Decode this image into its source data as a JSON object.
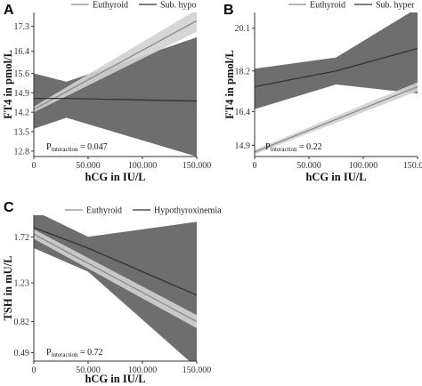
{
  "chart_data": [
    {
      "panel": "A",
      "type": "line",
      "xlabel": "hCG in IU/L",
      "ylabel": "FT4 in pmol/L",
      "x_ticks": [
        "0",
        "50.000",
        "100.000",
        "150.000"
      ],
      "y_ticks": [
        "12.8",
        "13.5",
        "14.2",
        "14.9",
        "15.6",
        "16.4",
        "17.3"
      ],
      "xlim": [
        0,
        150000
      ],
      "ylim": [
        12.6,
        17.8
      ],
      "legend": [
        "Euthyroid",
        "Sub. hypo"
      ],
      "legend_placement": "top",
      "annotation": {
        "prefix": "P",
        "sub": "interaction",
        "value": " = 0.047"
      },
      "series": [
        {
          "name": "Euthyroid",
          "color": "#8a8a8a",
          "x": [
            0,
            150000
          ],
          "y": [
            14.3,
            17.5
          ],
          "ci_lower": [
            14.2,
            17.1
          ],
          "ci_upper": [
            14.4,
            17.9
          ]
        },
        {
          "name": "Sub. hypo",
          "color": "#333333",
          "x": [
            0,
            30000,
            150000
          ],
          "y": [
            14.7,
            14.7,
            14.6
          ],
          "ci_lower": [
            13.6,
            14.0,
            12.6
          ],
          "ci_upper": [
            15.6,
            15.3,
            16.9
          ]
        }
      ],
      "band_colors": [
        "#d2d2d2",
        "#6e6e6e"
      ],
      "grid": false
    },
    {
      "panel": "B",
      "type": "line",
      "xlabel": "hCG in IU/L",
      "ylabel": "FT4 in pmol/L",
      "x_ticks": [
        "0",
        "50.000",
        "100.000",
        "150.000"
      ],
      "y_ticks": [
        "14.9",
        "16.4",
        "18.2",
        "20.1"
      ],
      "xlim": [
        0,
        150000
      ],
      "ylim": [
        14.4,
        20.8
      ],
      "legend": [
        "Euthyroid",
        "Sub. hyper"
      ],
      "legend_placement": "top",
      "annotation": {
        "prefix": "P",
        "sub": "interaction",
        "value": " = 0.22"
      },
      "series": [
        {
          "name": "Euthyroid",
          "color": "#8a8a8a",
          "x": [
            0,
            150000
          ],
          "y": [
            14.6,
            17.5
          ],
          "ci_lower": [
            14.5,
            17.3
          ],
          "ci_upper": [
            14.7,
            17.7
          ]
        },
        {
          "name": "Sub. hyper",
          "color": "#333333",
          "x": [
            0,
            75000,
            150000
          ],
          "y": [
            17.5,
            18.2,
            19.2
          ],
          "ci_lower": [
            16.5,
            17.6,
            17.2
          ],
          "ci_upper": [
            18.3,
            18.8,
            21.0
          ]
        }
      ],
      "band_colors": [
        "#d2d2d2",
        "#6e6e6e"
      ],
      "grid": false
    },
    {
      "panel": "C",
      "type": "line",
      "xlabel": "hCG in IU/L",
      "ylabel": "TSH in mU/L",
      "x_ticks": [
        "0",
        "50.000",
        "100.000",
        "150.000"
      ],
      "y_ticks": [
        "0.49",
        "0.82",
        "1.23",
        "1.72"
      ],
      "xlim": [
        0,
        150000
      ],
      "ylim": [
        0.4,
        1.95
      ],
      "legend": [
        "Euthyroid",
        "Hypothyroxinemia"
      ],
      "legend_placement": "top",
      "annotation": {
        "prefix": "P",
        "sub": "interaction",
        "value": " = 0.72"
      },
      "series": [
        {
          "name": "Euthyroid",
          "color": "#8a8a8a",
          "x": [
            0,
            150000
          ],
          "y": [
            1.75,
            0.82
          ],
          "ci_lower": [
            1.7,
            0.75
          ],
          "ci_upper": [
            1.8,
            0.89
          ]
        },
        {
          "name": "Hypothyroxinemia",
          "color": "#333333",
          "x": [
            0,
            50000,
            150000
          ],
          "y": [
            1.82,
            1.6,
            1.1
          ],
          "ci_lower": [
            1.6,
            1.35,
            0.33
          ],
          "ci_upper": [
            2.0,
            1.72,
            1.88
          ]
        }
      ],
      "band_colors": [
        "#d2d2d2",
        "#6e6e6e"
      ],
      "grid": false
    }
  ]
}
